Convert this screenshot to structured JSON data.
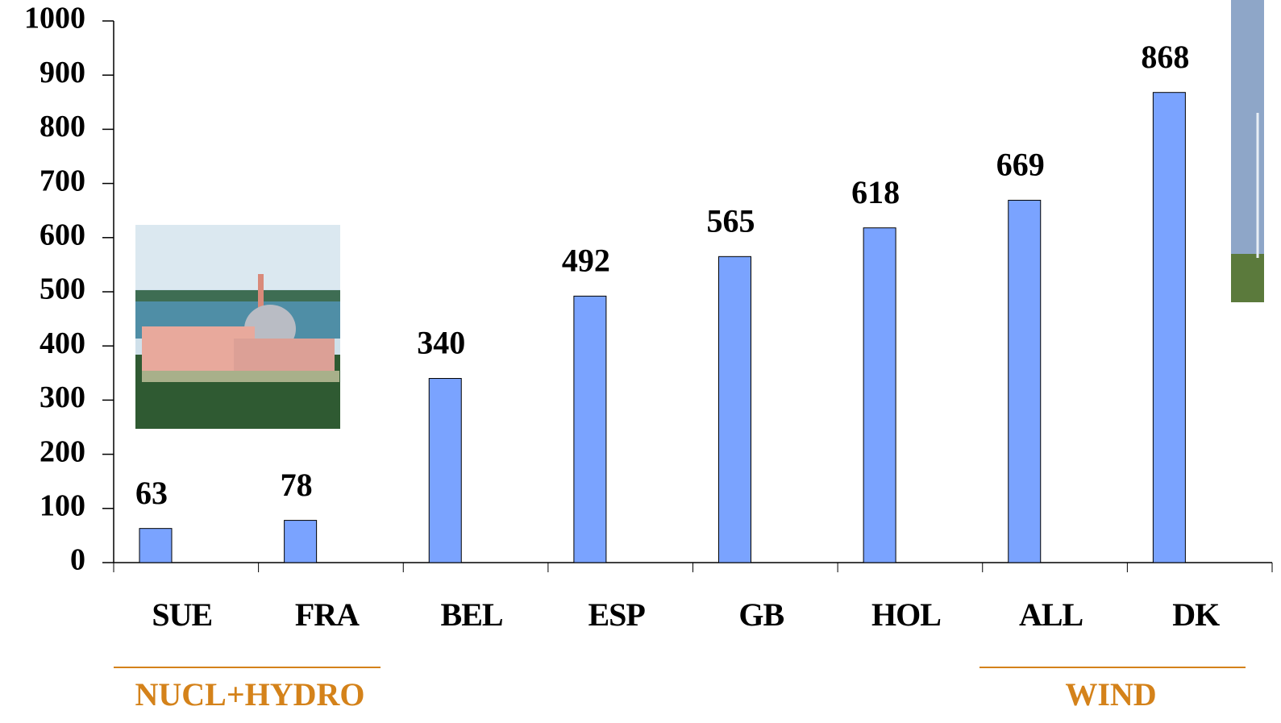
{
  "chart_data": {
    "type": "bar",
    "categories": [
      "SUE",
      "FRA",
      "BEL",
      "ESP",
      "GB",
      "HOL",
      "ALL",
      "DK"
    ],
    "values": [
      63,
      78,
      340,
      492,
      565,
      618,
      669,
      868
    ],
    "color": "#7aa3ff",
    "ylim": [
      0,
      1000
    ],
    "yticks": [
      0,
      100,
      200,
      300,
      400,
      500,
      600,
      700,
      800,
      900,
      1000
    ],
    "annotations": [
      "NUCL+HYDRO",
      "WIND"
    ],
    "annotation_color": "#d4821a"
  }
}
